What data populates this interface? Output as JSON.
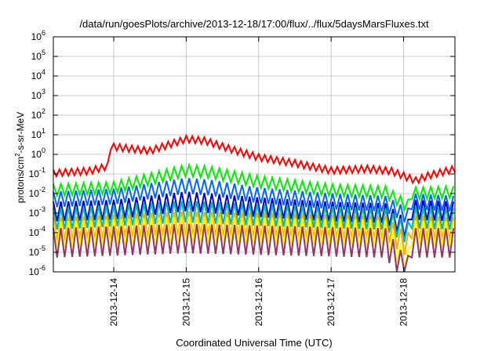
{
  "chart_data": {
    "type": "line",
    "title": "/data/run/goesPlots/archive/2013-12-18/17:00/flux/../flux/5daysMarsFluxes.txt",
    "xlabel": "Coordinated Universal Time (UTC)",
    "ylabel": {
      "prefix": "protons/cm",
      "sup": "2",
      "suffix": "-s-sr-MeV"
    },
    "y_scale": "log",
    "ylim": [
      1e-06,
      1000000.0
    ],
    "y_ticks": [
      {
        "value": 1e-06,
        "base": "10",
        "exp": "-6"
      },
      {
        "value": 1e-05,
        "base": "10",
        "exp": "-5"
      },
      {
        "value": 0.0001,
        "base": "10",
        "exp": "-4"
      },
      {
        "value": 0.001,
        "base": "10",
        "exp": "-3"
      },
      {
        "value": 0.01,
        "base": "10",
        "exp": "-2"
      },
      {
        "value": 0.1,
        "base": "10",
        "exp": "-1"
      },
      {
        "value": 1.0,
        "base": "10",
        "exp": "0"
      },
      {
        "value": 10.0,
        "base": "10",
        "exp": "1"
      },
      {
        "value": 100.0,
        "base": "10",
        "exp": "2"
      },
      {
        "value": 1000.0,
        "base": "10",
        "exp": "3"
      },
      {
        "value": 10000.0,
        "base": "10",
        "exp": "4"
      },
      {
        "value": 100000.0,
        "base": "10",
        "exp": "5"
      },
      {
        "value": 1000000.0,
        "base": "10",
        "exp": "6"
      }
    ],
    "xlim": [
      "2013-12-13 04:00",
      "2013-12-18 17:00"
    ],
    "x_ticks": [
      "2013-12-14",
      "2013-12-15",
      "2013-12-16",
      "2013-12-17",
      "2013-12-18"
    ],
    "grid": true,
    "series": [
      {
        "color": "#ff0000",
        "cycle_hours": 2,
        "amp": 0.35,
        "period_hours": 0,
        "anchors": [
          [
            "2013-12-13 04:00",
            0.11
          ],
          [
            "2013-12-13 16:00",
            0.14
          ],
          [
            "2013-12-13 22:00",
            0.25
          ],
          [
            "2013-12-13 23:00",
            2.5
          ],
          [
            "2013-12-14 12:00",
            1.5
          ],
          [
            "2013-12-15 00:00",
            6
          ],
          [
            "2013-12-15 06:00",
            5
          ],
          [
            "2013-12-15 14:00",
            2
          ],
          [
            "2013-12-16 00:00",
            0.7
          ],
          [
            "2013-12-16 12:00",
            0.35
          ],
          [
            "2013-12-17 00:00",
            0.15
          ],
          [
            "2013-12-17 12:00",
            0.18
          ],
          [
            "2013-12-17 20:00",
            0.14
          ],
          [
            "2013-12-18 04:00",
            0.045
          ],
          [
            "2013-12-18 08:00",
            0.08
          ],
          [
            "2013-12-18 17:00",
            0.18
          ]
        ]
      },
      {
        "color": "#00ee00",
        "cycle_hours": 2.5,
        "amp": 0.6,
        "period_hours": 0,
        "anchors": [
          [
            "2013-12-13 04:00",
            0.015
          ],
          [
            "2013-12-14 00:00",
            0.02
          ],
          [
            "2013-12-15 00:00",
            0.15
          ],
          [
            "2013-12-15 08:00",
            0.12
          ],
          [
            "2013-12-16 00:00",
            0.04
          ],
          [
            "2013-12-17 00:00",
            0.015
          ],
          [
            "2013-12-17 18:00",
            0.012
          ],
          [
            "2013-12-18 00:00",
            0.003
          ],
          [
            "2013-12-18 01:30",
            0.0025
          ],
          [
            "2013-12-18 02:00",
            0.01
          ],
          [
            "2013-12-18 17:00",
            0.012
          ]
        ]
      },
      {
        "color": "#0066ff",
        "cycle_hours": 2.5,
        "amp": 0.8,
        "period_hours": 0,
        "anchors": [
          [
            "2013-12-13 04:00",
            0.005
          ],
          [
            "2013-12-14 00:00",
            0.007
          ],
          [
            "2013-12-15 00:00",
            0.025
          ],
          [
            "2013-12-15 08:00",
            0.02
          ],
          [
            "2013-12-16 00:00",
            0.008
          ],
          [
            "2013-12-17 00:00",
            0.004
          ],
          [
            "2013-12-17 18:00",
            0.003
          ],
          [
            "2013-12-18 00:00",
            0.0009
          ],
          [
            "2013-12-18 01:30",
            0.0007
          ],
          [
            "2013-12-18 02:00",
            0.004
          ],
          [
            "2013-12-18 17:00",
            0.003
          ]
        ]
      },
      {
        "color": "#0000cc",
        "cycle_hours": 2.5,
        "amp": 1.0,
        "period_hours": 0,
        "anchors": [
          [
            "2013-12-13 04:00",
            0.0012
          ],
          [
            "2013-12-14 00:00",
            0.0015
          ],
          [
            "2013-12-15 00:00",
            0.004
          ],
          [
            "2013-12-16 00:00",
            0.002
          ],
          [
            "2013-12-17 00:00",
            0.0012
          ],
          [
            "2013-12-17 18:00",
            0.001
          ],
          [
            "2013-12-18 00:00",
            0.0002
          ],
          [
            "2013-12-18 01:30",
            0.00015
          ],
          [
            "2013-12-18 02:00",
            0.0015
          ],
          [
            "2013-12-18 17:00",
            0.0012
          ]
        ]
      },
      {
        "color": "#00bbaa",
        "cycle_hours": 2.5,
        "amp": 1.1,
        "period_hours": 0,
        "anchors": [
          [
            "2013-12-13 04:00",
            0.0005
          ],
          [
            "2013-12-15 00:00",
            0.0012
          ],
          [
            "2013-12-16 00:00",
            0.0008
          ],
          [
            "2013-12-17 18:00",
            0.0005
          ],
          [
            "2013-12-18 00:00",
            0.00012
          ],
          [
            "2013-12-18 01:30",
            0.0001
          ],
          [
            "2013-12-18 02:00",
            0.0006
          ],
          [
            "2013-12-18 17:00",
            0.0005
          ]
        ]
      },
      {
        "color": "#ffaa00",
        "cycle_hours": 2.5,
        "amp": 1.2,
        "period_hours": 0,
        "anchors": [
          [
            "2013-12-13 04:00",
            0.00015
          ],
          [
            "2013-12-15 00:00",
            0.0003
          ],
          [
            "2013-12-17 18:00",
            0.00018
          ],
          [
            "2013-12-18 00:00",
            3e-05
          ],
          [
            "2013-12-18 01:30",
            2.5e-05
          ],
          [
            "2013-12-18 02:00",
            0.0002
          ],
          [
            "2013-12-18 17:00",
            0.00015
          ]
        ]
      },
      {
        "color": "#ffff00",
        "cycle_hours": 2.5,
        "amp": 1.3,
        "period_hours": 0,
        "anchors": [
          [
            "2013-12-13 04:00",
            8e-05
          ],
          [
            "2013-12-15 00:00",
            0.00015
          ],
          [
            "2013-12-17 18:00",
            0.0001
          ],
          [
            "2013-12-18 00:00",
            4e-06
          ],
          [
            "2013-12-18 01:30",
            3.5e-06
          ],
          [
            "2013-12-18 02:00",
            0.0001
          ],
          [
            "2013-12-18 17:00",
            8e-05
          ]
        ]
      },
      {
        "color": "#993366",
        "cycle_hours": 2.5,
        "amp": 1.5,
        "period_hours": 0,
        "anchors": [
          [
            "2013-12-13 04:00",
            3e-05
          ],
          [
            "2013-12-15 00:00",
            5e-05
          ],
          [
            "2013-12-17 18:00",
            3e-05
          ],
          [
            "2013-12-18 00:00",
            1.4e-06
          ],
          [
            "2013-12-18 01:30",
            1.2e-06
          ],
          [
            "2013-12-18 02:00",
            3e-05
          ],
          [
            "2013-12-18 17:00",
            3e-05
          ]
        ]
      }
    ]
  }
}
